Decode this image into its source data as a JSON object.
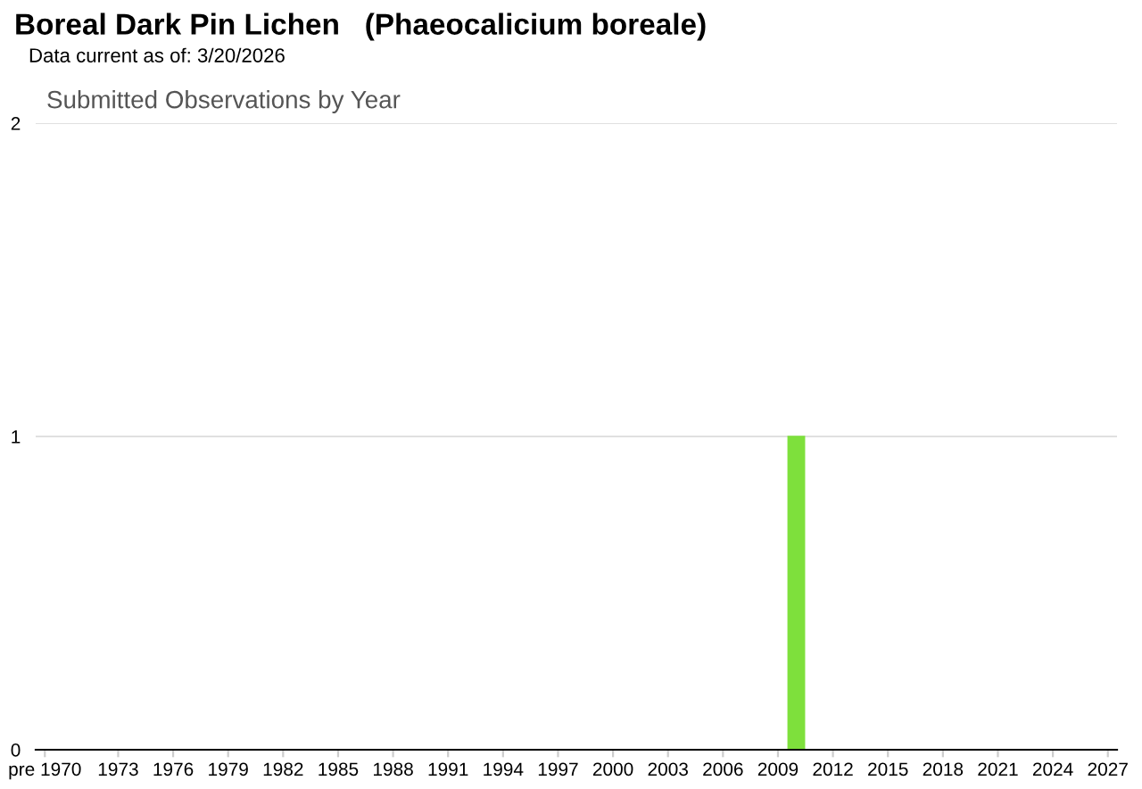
{
  "chart_data": {
    "type": "bar",
    "title": "Boreal Dark Pin Lichen   (Phaeocalicium boreale)",
    "subtitle": "Data current as of: 3/20/2026",
    "annotations": [
      "Submitted Observations by Year"
    ],
    "categories": [
      "pre 1970",
      null,
      null,
      null,
      "1973",
      null,
      null,
      "1976",
      null,
      null,
      "1979",
      null,
      null,
      "1982",
      null,
      null,
      "1985",
      null,
      null,
      "1988",
      null,
      null,
      "1991",
      null,
      null,
      "1994",
      null,
      null,
      "1997",
      null,
      null,
      "2000",
      null,
      null,
      "2003",
      null,
      null,
      "2006",
      null,
      null,
      "2009",
      null,
      null,
      "2012",
      null,
      null,
      "2015",
      null,
      null,
      "2018",
      null,
      null,
      "2021",
      null,
      null,
      "2024",
      null,
      null,
      "2027"
    ],
    "values": [
      0,
      0,
      0,
      0,
      0,
      0,
      0,
      0,
      0,
      0,
      0,
      0,
      0,
      0,
      0,
      0,
      0,
      0,
      0,
      0,
      0,
      0,
      0,
      0,
      0,
      0,
      0,
      0,
      0,
      0,
      0,
      0,
      0,
      0,
      0,
      0,
      0,
      0,
      0,
      0,
      0,
      1,
      0,
      0,
      0,
      0,
      0,
      0,
      0,
      0,
      0,
      0,
      0,
      0,
      0,
      0,
      0,
      0,
      0
    ],
    "color": "#7ee03c",
    "ylim": [
      0,
      2
    ],
    "yticks": [
      0,
      1,
      2
    ],
    "grid": "y",
    "legend": false
  }
}
